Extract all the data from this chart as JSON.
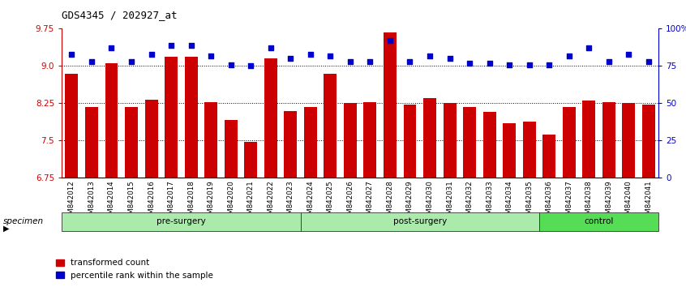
{
  "title": "GDS4345 / 202927_at",
  "samples": [
    "GSM842012",
    "GSM842013",
    "GSM842014",
    "GSM842015",
    "GSM842016",
    "GSM842017",
    "GSM842018",
    "GSM842019",
    "GSM842020",
    "GSM842021",
    "GSM842022",
    "GSM842023",
    "GSM842024",
    "GSM842025",
    "GSM842026",
    "GSM842027",
    "GSM842028",
    "GSM842029",
    "GSM842030",
    "GSM842031",
    "GSM842032",
    "GSM842033",
    "GSM842034",
    "GSM842035",
    "GSM842036",
    "GSM842037",
    "GSM842038",
    "GSM842039",
    "GSM842040",
    "GSM842041"
  ],
  "red_values": [
    8.85,
    8.18,
    9.05,
    8.18,
    8.32,
    9.18,
    9.18,
    8.28,
    7.92,
    7.47,
    9.15,
    8.1,
    8.18,
    8.85,
    8.25,
    8.28,
    9.68,
    8.22,
    8.35,
    8.25,
    8.18,
    8.07,
    7.85,
    7.88,
    7.62,
    8.18,
    8.3,
    8.28,
    8.25,
    8.22
  ],
  "blue_values_pct": [
    83,
    78,
    87,
    78,
    83,
    89,
    89,
    82,
    76,
    75,
    87,
    80,
    83,
    82,
    78,
    78,
    92,
    78,
    82,
    80,
    77,
    77,
    76,
    76,
    76,
    82,
    87,
    78,
    83,
    78
  ],
  "group_labels": [
    "pre-surgery",
    "post-surgery",
    "control"
  ],
  "group_ranges": [
    [
      0,
      12
    ],
    [
      12,
      24
    ],
    [
      24,
      30
    ]
  ],
  "group_colors_light": [
    "#aaeaaa",
    "#aaeaaa"
  ],
  "group_color_dark": "#55dd55",
  "ymin": 6.75,
  "ymax": 9.75,
  "yticks": [
    6.75,
    7.5,
    8.25,
    9.0,
    9.75
  ],
  "y2min": 0,
  "y2max": 100,
  "y2ticks": [
    0,
    25,
    50,
    75,
    100
  ],
  "y2ticklabels": [
    "0",
    "25",
    "50",
    "75",
    "100%"
  ],
  "bar_color": "#CC0000",
  "dot_color": "#0000CC",
  "gridline_yticks": [
    7.5,
    8.25,
    9.0
  ]
}
